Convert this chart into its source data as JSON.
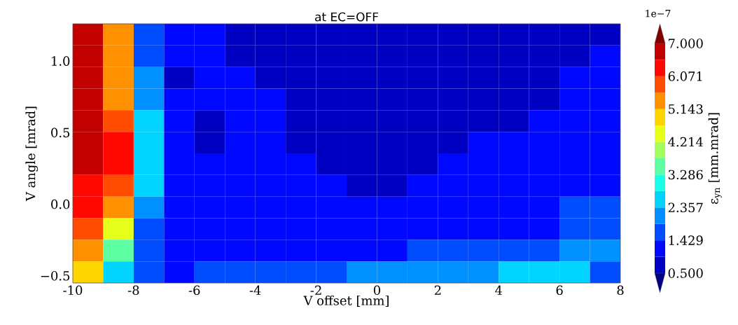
{
  "chart_data": {
    "type": "heatmap",
    "title": "at EC=OFF",
    "xlabel": "V offset [mm]",
    "ylabel": "V angle [mrad]",
    "clabel": "ε$_{yn}$ [mm.mrad]",
    "annotations": [
      "1e−7"
    ],
    "xlim": [
      -10,
      8
    ],
    "ylim": [
      -0.55,
      1.26
    ],
    "xticks": [
      -10,
      -8,
      -6,
      -4,
      -2,
      0,
      2,
      4,
      6,
      8
    ],
    "yticks": [
      {
        "value": -0.5,
        "label": "−0.5"
      },
      {
        "value": 0,
        "label": "0.0"
      },
      {
        "value": 0.5,
        "label": "0.5"
      },
      {
        "value": 1,
        "label": "1.0"
      }
    ],
    "clim": [
      0.5,
      7
    ],
    "cticks": [
      {
        "value": 0.5,
        "label": "0.500"
      },
      {
        "value": 1.429,
        "label": "1.429"
      },
      {
        "value": 2.357,
        "label": "2.357"
      },
      {
        "value": 3.286,
        "label": "3.286"
      },
      {
        "value": 4.214,
        "label": "4.214"
      },
      {
        "value": 5.143,
        "label": "5.143"
      },
      {
        "value": 6.071,
        "label": "6.071"
      },
      {
        "value": 7,
        "label": "7.000"
      }
    ],
    "cells": [
      [
        6.9,
        5.2,
        1.5,
        1.2,
        1.2,
        0.85,
        0.9,
        0.75,
        0.75,
        0.75,
        0.75,
        0.75,
        0.75,
        0.75,
        0.75,
        0.75,
        0.75,
        0.9
      ],
      [
        6.77,
        5.3,
        1.5,
        1.2,
        1.2,
        0.9,
        0.95,
        0.75,
        0.75,
        0.75,
        0.75,
        0.75,
        0.75,
        0.75,
        0.75,
        0.75,
        0.96,
        1.2
      ],
      [
        6.77,
        5.4,
        2.0,
        0.9,
        1.2,
        1.0,
        0.9,
        0.75,
        0.75,
        0.75,
        0.75,
        0.75,
        0.75,
        0.75,
        0.75,
        0.75,
        1.2,
        1.2
      ],
      [
        6.77,
        5.6,
        2.3,
        1.0,
        1.2,
        1.2,
        1.0,
        0.75,
        0.75,
        0.75,
        0.75,
        0.75,
        0.75,
        0.75,
        0.75,
        0.96,
        1.2,
        1.2
      ],
      [
        6.77,
        5.8,
        2.6,
        1.2,
        0.85,
        1.0,
        1.2,
        0.75,
        0.75,
        0.75,
        0.75,
        0.75,
        0.75,
        0.9,
        0.95,
        1.2,
        1.2,
        1.2
      ],
      [
        6.77,
        6.2,
        2.6,
        1.2,
        0.9,
        1.0,
        1.2,
        0.85,
        0.75,
        0.75,
        0.75,
        0.75,
        0.75,
        1.1,
        1.2,
        1.2,
        1.2,
        1.2
      ],
      [
        6.77,
        6.1,
        2.5,
        1.2,
        1.2,
        1.2,
        1.2,
        1.0,
        0.75,
        0.75,
        0.75,
        0.75,
        1.0,
        1.2,
        1.2,
        1.2,
        1.2,
        1.2
      ],
      [
        6.3,
        5.9,
        2.4,
        1.2,
        1.2,
        1.2,
        1.2,
        1.2,
        1.0,
        0.75,
        0.96,
        1.1,
        1.1,
        1.2,
        1.2,
        1.2,
        1.2,
        1.3
      ],
      [
        6.1,
        5.4,
        2.1,
        1.2,
        1.2,
        1.2,
        1.2,
        1.2,
        1.2,
        1.1,
        1.1,
        1.2,
        1.2,
        1.2,
        1.2,
        1.2,
        1.43,
        1.55
      ],
      [
        5.9,
        4.6,
        1.5,
        1.2,
        1.2,
        1.2,
        1.2,
        1.2,
        1.2,
        1.2,
        1.2,
        1.2,
        1.2,
        1.2,
        1.2,
        1.4,
        1.66,
        1.85
      ],
      [
        5.5,
        3.4,
        1.5,
        1.2,
        1.2,
        1.2,
        1.2,
        1.2,
        1.2,
        1.2,
        1.4,
        1.6,
        1.55,
        1.55,
        1.6,
        1.66,
        1.9,
        2.2
      ],
      [
        5.0,
        2.8,
        1.6,
        1.3,
        1.5,
        1.5,
        1.5,
        1.6,
        1.7,
        1.9,
        2.1,
        2.2,
        2.3,
        2.1,
        2.4,
        2.4,
        2.5,
        1.6
      ]
    ]
  }
}
